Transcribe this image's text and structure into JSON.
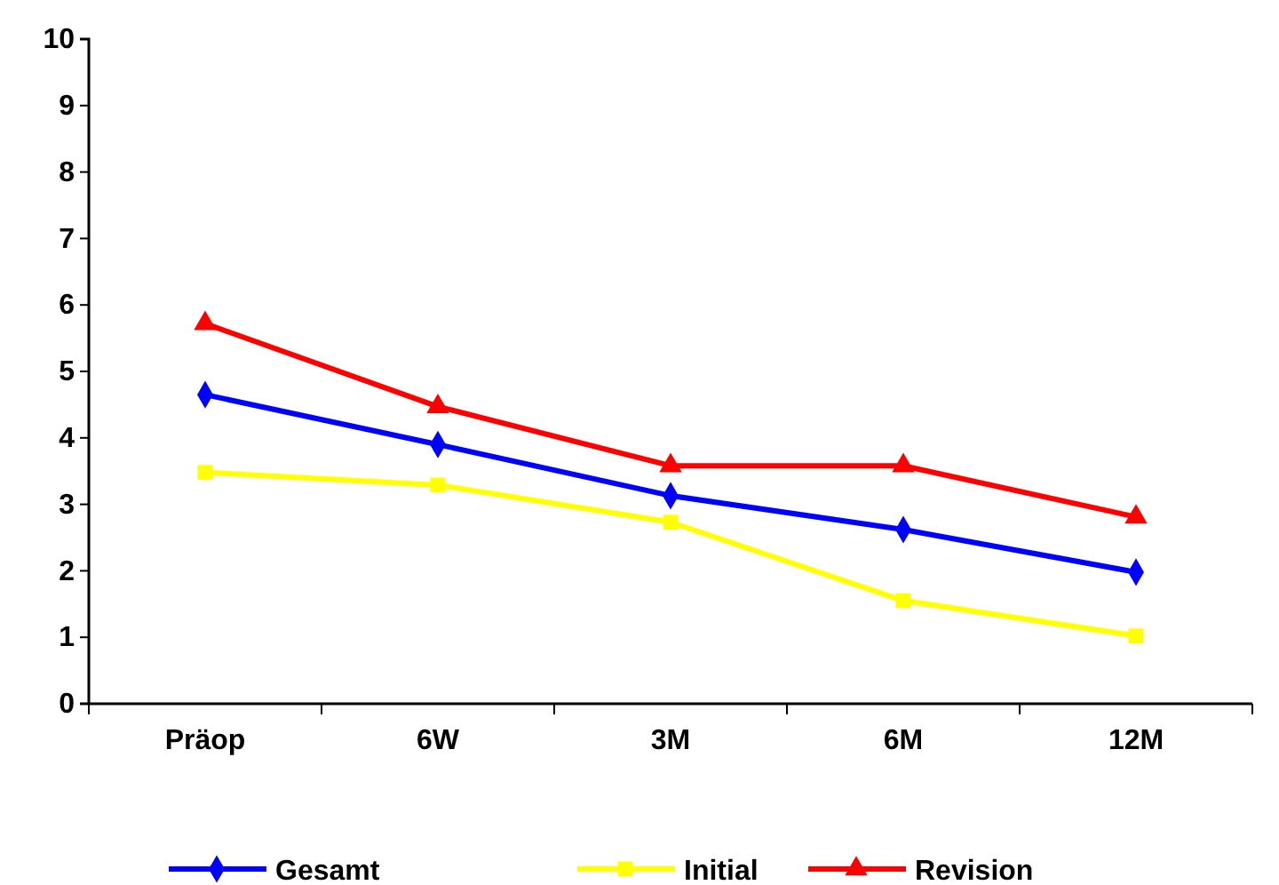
{
  "chart_data": {
    "type": "line",
    "categories": [
      "Präop",
      "6W",
      "3M",
      "6M",
      "12M"
    ],
    "ylim": [
      0,
      10
    ],
    "yticks": [
      0,
      1,
      2,
      3,
      4,
      5,
      6,
      7,
      8,
      9,
      10
    ],
    "grid": false,
    "legend": "bottom",
    "series": [
      {
        "name": "Gesamt",
        "color": "#0000ff",
        "marker": "diamond",
        "values": [
          4.65,
          3.9,
          3.13,
          2.62,
          1.98
        ]
      },
      {
        "name": "Initial",
        "color": "#ffff00",
        "marker": "square",
        "values": [
          3.48,
          3.29,
          2.73,
          1.55,
          1.02
        ]
      },
      {
        "name": "Revision",
        "color": "#ff0000",
        "marker": "triangle",
        "values": [
          5.72,
          4.47,
          3.58,
          3.58,
          2.81
        ]
      }
    ]
  }
}
